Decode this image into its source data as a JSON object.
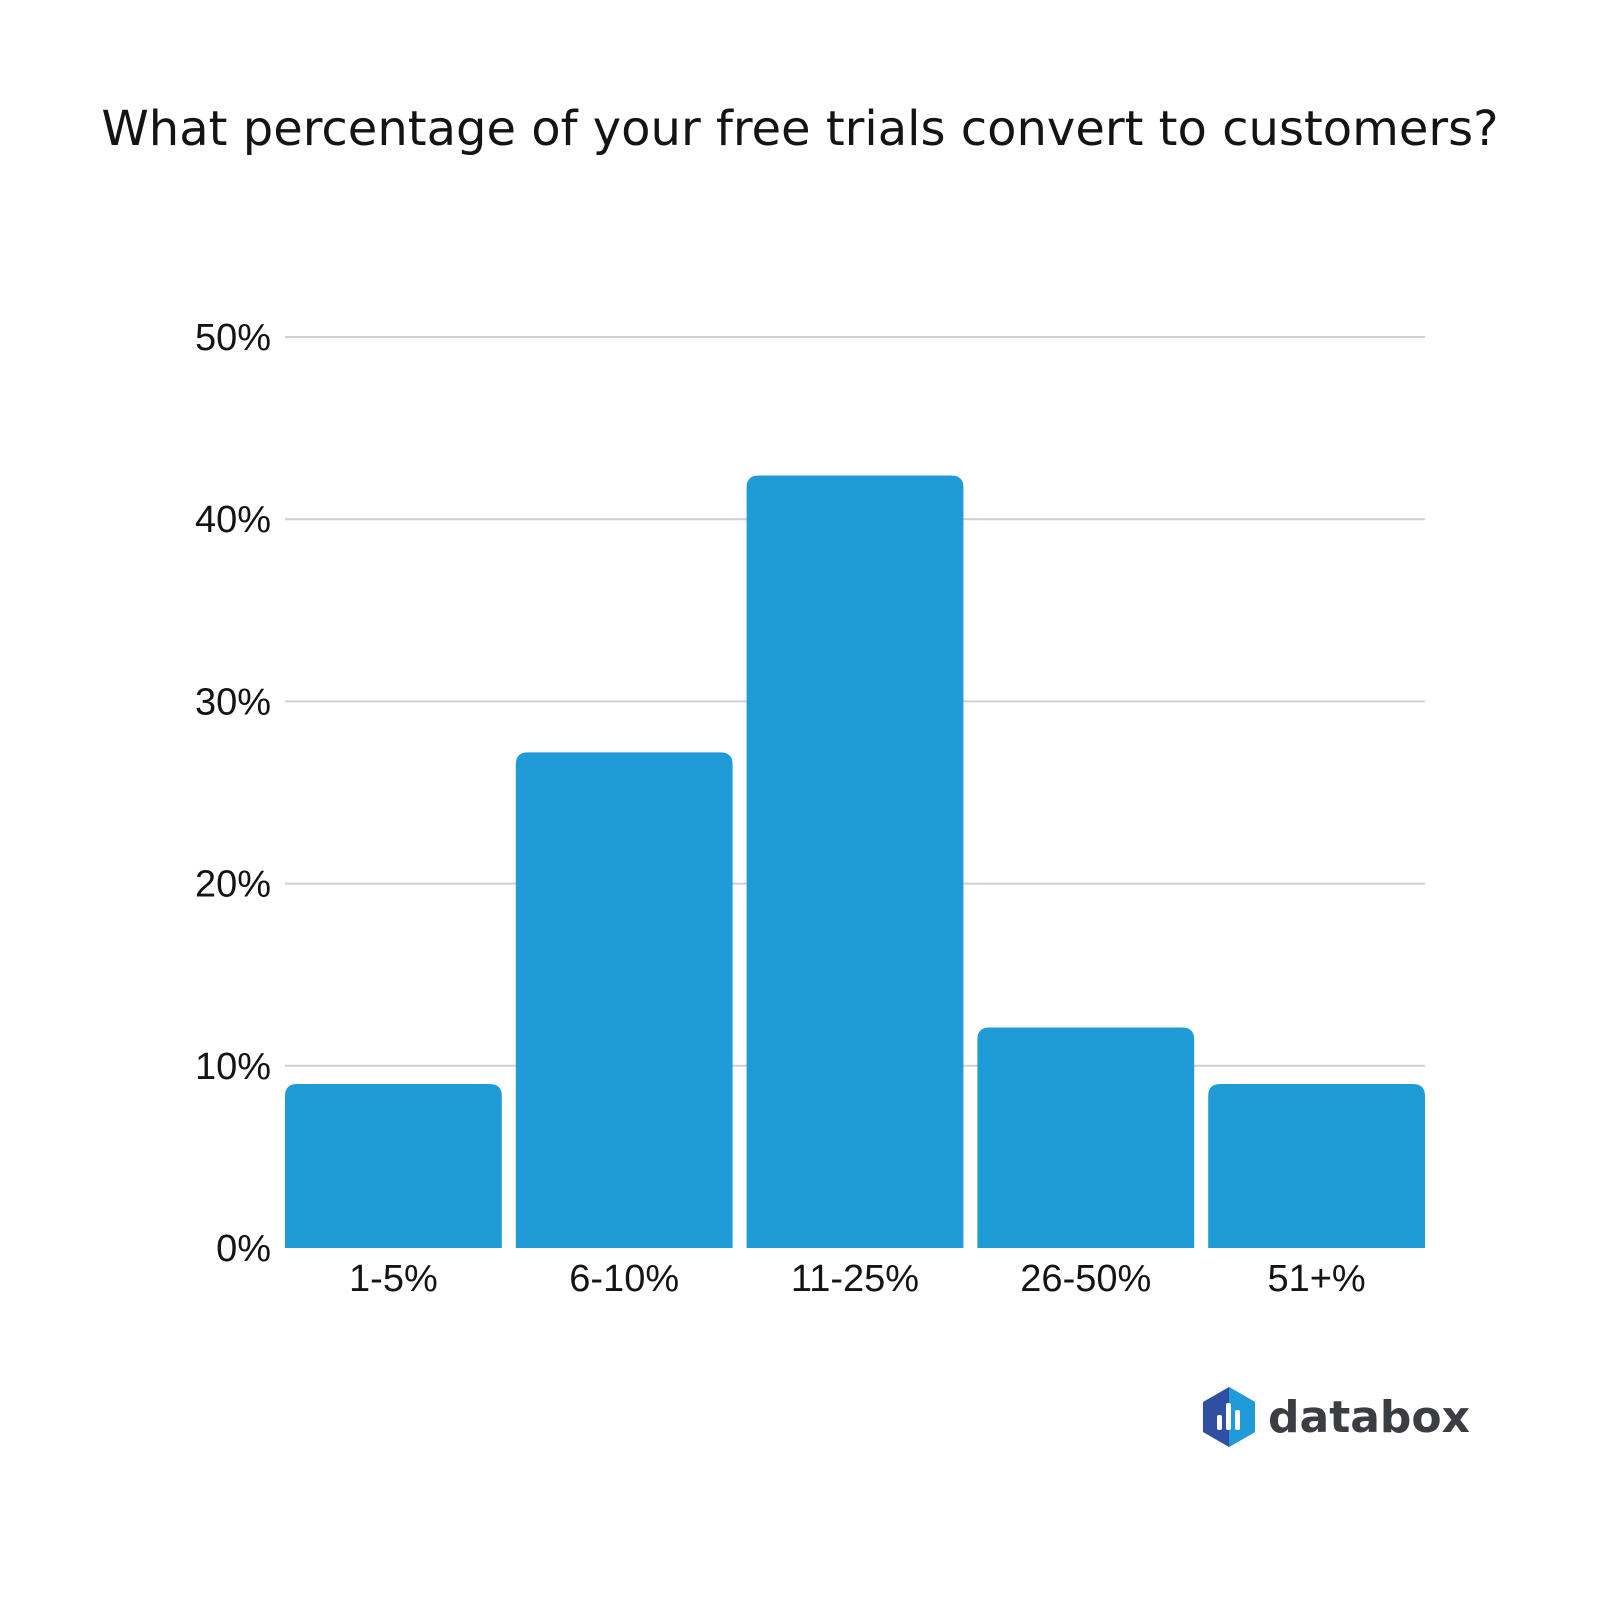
{
  "chart_data": {
    "type": "bar",
    "title": "What percentage of your free trials convert to customers?",
    "xlabel": "",
    "ylabel": "",
    "categories": [
      "1-5%",
      "6-10%",
      "11-25%",
      "26-50%",
      "51+%"
    ],
    "values": [
      9,
      27.2,
      42.4,
      12.1,
      9
    ],
    "ylim": [
      0,
      50
    ],
    "yticks": [
      0,
      10,
      20,
      30,
      40,
      50
    ],
    "ytick_labels": [
      "0%",
      "10%",
      "20%",
      "30%",
      "40%",
      "50%"
    ],
    "grid": true,
    "bar_color": "#1f9bd7"
  },
  "brand": {
    "name": "databox",
    "icon": "databox-logo-icon",
    "colors": [
      "#2f4fa3",
      "#1f9bd7"
    ]
  }
}
